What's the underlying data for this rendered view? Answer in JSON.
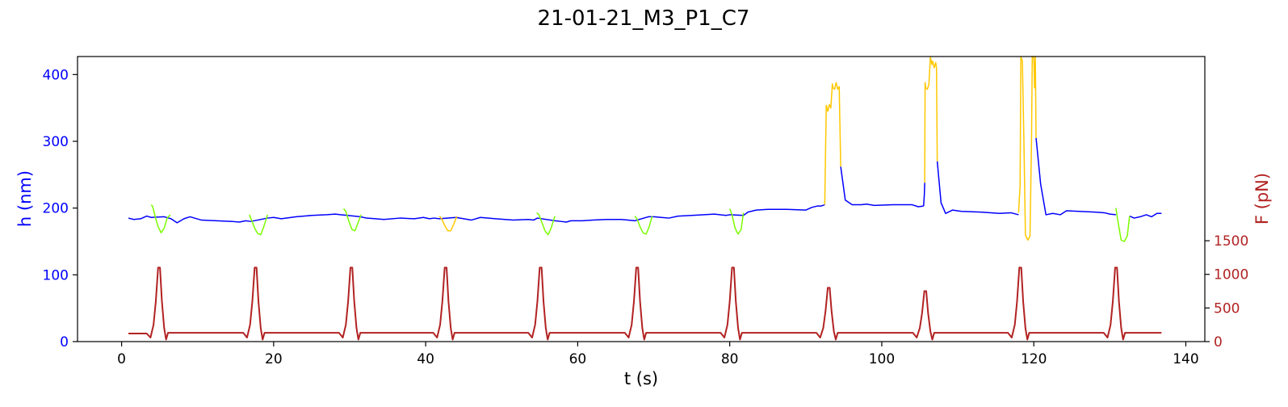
{
  "chart_data": {
    "type": "line",
    "title": "21-01-21_M3_P1_C7",
    "xlabel": "t (s)",
    "ylabel_left": "h (nm)",
    "ylabel_right": "F (pN)",
    "xlim": [
      -5.8,
      142.5
    ],
    "ylim_left": [
      0,
      427
    ],
    "ylim_right": [
      0,
      4240
    ],
    "xticks": [
      0,
      20,
      40,
      60,
      80,
      100,
      120,
      140
    ],
    "yticks_left": [
      0,
      100,
      200,
      300,
      400
    ],
    "yticks_right": [
      0,
      500,
      1000,
      1500
    ],
    "grid": false,
    "colors": {
      "height_baseline": "#0000ff",
      "height_green_segments": "#7cfc00",
      "height_yellow_segments": "#ffc800",
      "force": "#b22222",
      "left_axis": "#0000ff",
      "right_axis": "#b22222"
    },
    "series": [
      {
        "role": "height_baseline",
        "axis": "left",
        "x": [
          0.9,
          1.6,
          2.5,
          3.3,
          3.9,
          5.6,
          6.5,
          7.3,
          8.2,
          9.0,
          10.5,
          12.5,
          14.5,
          15.5,
          16.3,
          17.0,
          19.2,
          20.0,
          21.0,
          23.0,
          25.0,
          27.0,
          28.1,
          28.8,
          31.4,
          32.2,
          33.4,
          34.5,
          36.6,
          38.5,
          39.7,
          40.5,
          41.1,
          41.8,
          44.0,
          45.0,
          46.0,
          47.2,
          49.2,
          51.5,
          53.5,
          54.2,
          54.7,
          57.0,
          57.8,
          58.5,
          59.1,
          60.6,
          62.0,
          63.8,
          65.7,
          66.6,
          67.5,
          69.3,
          70.0,
          71.0,
          72.0,
          73.2,
          75.0,
          78.0,
          79.5,
          80.0,
          81.8,
          82.4,
          83.5,
          85.0,
          87.5,
          90.0,
          90.8,
          91.5,
          92.0,
          92.5
        ],
        "y": [
          185,
          183,
          184,
          188,
          186,
          187,
          184,
          178,
          184,
          187,
          182,
          181,
          180,
          179,
          181,
          180,
          185,
          186,
          184,
          187,
          189,
          190,
          191,
          190,
          187,
          185,
          184,
          183,
          185,
          184,
          186,
          184,
          185,
          184,
          186,
          184,
          182,
          186,
          184,
          182,
          183,
          182,
          185,
          181,
          180,
          179,
          181,
          181,
          182,
          183,
          183,
          182,
          181,
          187,
          187,
          186,
          185,
          188,
          189,
          191,
          189,
          190,
          189,
          194,
          197,
          198,
          198,
          197,
          201,
          203,
          203,
          205
        ]
      },
      {
        "role": "height_baseline",
        "axis": "left",
        "x": [
          94.6,
          95.2,
          96.1,
          97.3,
          98.0,
          99.0,
          101.5,
          104.0,
          104.8,
          105.5
        ],
        "y": [
          262,
          212,
          205,
          205,
          206,
          204,
          205,
          205,
          202,
          203
        ]
      },
      {
        "role": "height_baseline",
        "axis": "left",
        "x": [
          105.5,
          105.6,
          105.65
        ],
        "y": [
          203,
          220,
          238
        ]
      },
      {
        "role": "height_baseline",
        "axis": "left",
        "x": [
          107.3,
          107.8,
          108.4,
          109.3,
          110.5,
          113.0,
          115.5,
          117.0,
          118.0
        ],
        "y": [
          270,
          208,
          192,
          197,
          195,
          194,
          192,
          193,
          190
        ]
      },
      {
        "role": "height_baseline",
        "axis": "left",
        "x": [
          120.3,
          120.9,
          121.6,
          122.5,
          123.5,
          124.3,
          126.0,
          128.0,
          129.3,
          130.0,
          130.8
        ],
        "y": [
          305,
          236,
          190,
          192,
          190,
          196,
          195,
          194,
          193,
          191,
          190
        ]
      },
      {
        "role": "height_baseline",
        "axis": "left",
        "x": [
          132.6,
          133.2,
          134.0,
          134.8,
          135.5,
          136.2,
          136.8
        ],
        "y": [
          188,
          185,
          187,
          190,
          187,
          192,
          192
        ]
      },
      {
        "role": "height_green_segments",
        "axis": "left",
        "x": [
          3.9,
          4.1,
          4.4,
          4.8,
          5.2,
          5.6,
          6.0,
          6.4
        ],
        "y": [
          205,
          202,
          188,
          172,
          163,
          170,
          185,
          190
        ]
      },
      {
        "role": "height_green_segments",
        "axis": "left",
        "x": [
          16.8,
          17.1,
          17.5,
          17.9,
          18.3,
          18.7,
          19.2
        ],
        "y": [
          190,
          182,
          170,
          162,
          160,
          172,
          190
        ]
      },
      {
        "role": "height_green_segments",
        "axis": "left",
        "x": [
          29.2,
          29.5,
          29.9,
          30.3,
          30.7,
          31.1,
          31.5
        ],
        "y": [
          199,
          195,
          180,
          168,
          166,
          178,
          190
        ]
      },
      {
        "role": "height_yellow_segments",
        "axis": "left",
        "x": [
          41.8,
          42.1,
          42.5,
          42.9,
          43.3,
          43.7,
          44.1
        ],
        "y": [
          188,
          184,
          174,
          166,
          166,
          176,
          188
        ]
      },
      {
        "role": "height_green_segments",
        "axis": "left",
        "x": [
          54.6,
          54.9,
          55.3,
          55.7,
          56.1,
          56.5,
          57.0
        ],
        "y": [
          193,
          190,
          178,
          166,
          160,
          170,
          188
        ]
      },
      {
        "role": "height_green_segments",
        "axis": "left",
        "x": [
          67.5,
          67.8,
          68.2,
          68.6,
          69.0,
          69.4,
          69.8
        ],
        "y": [
          188,
          184,
          172,
          163,
          161,
          172,
          188
        ]
      },
      {
        "role": "height_green_segments",
        "axis": "left",
        "x": [
          80.0,
          80.3,
          80.7,
          81.1,
          81.5,
          81.8
        ],
        "y": [
          199,
          190,
          170,
          161,
          168,
          193
        ]
      },
      {
        "role": "height_yellow_segments",
        "axis": "left",
        "x": [
          92.5,
          92.6,
          92.7,
          92.9,
          93.1,
          93.3,
          93.5,
          93.6,
          93.8,
          94.0,
          94.2,
          94.4,
          94.6
        ],
        "y": [
          205,
          280,
          354,
          345,
          355,
          350,
          386,
          380,
          378,
          388,
          378,
          382,
          262
        ]
      },
      {
        "role": "height_yellow_segments",
        "axis": "left",
        "x": [
          105.65,
          105.7,
          105.8,
          106.0,
          106.2,
          106.4,
          106.6,
          106.7,
          106.9,
          107.1,
          107.2,
          107.3
        ],
        "y": [
          238,
          388,
          380,
          378,
          385,
          426,
          415,
          420,
          410,
          418,
          410,
          270
        ]
      },
      {
        "role": "height_yellow_segments",
        "axis": "left",
        "x": [
          118.0,
          118.2,
          118.3,
          118.5,
          118.7,
          118.9,
          119.2,
          119.5,
          119.7,
          119.8,
          120.0,
          120.1,
          120.2,
          120.3
        ],
        "y": [
          193,
          235,
          427,
          420,
          300,
          160,
          152,
          158,
          300,
          427,
          427,
          380,
          427,
          305
        ]
      },
      {
        "role": "height_green_segments",
        "axis": "left",
        "x": [
          130.8,
          131.1,
          131.5,
          131.9,
          132.3,
          132.6
        ],
        "y": [
          200,
          178,
          152,
          150,
          158,
          188
        ]
      },
      {
        "role": "force",
        "axis": "right",
        "x": [
          0.9,
          3.3,
          3.8,
          4.2,
          4.5,
          4.8,
          5.05,
          5.3,
          5.6,
          5.85,
          6.1,
          6.5,
          16.0,
          16.5,
          16.9,
          17.2,
          17.5,
          17.75,
          18.0,
          18.3,
          18.55,
          18.8,
          19.2,
          28.6,
          29.1,
          29.5,
          29.8,
          30.1,
          30.35,
          30.6,
          30.9,
          31.15,
          31.4,
          31.8,
          41.0,
          41.5,
          41.9,
          42.2,
          42.5,
          42.75,
          43.0,
          43.3,
          43.55,
          43.8,
          44.2,
          53.5,
          54.0,
          54.4,
          54.7,
          55.0,
          55.25,
          55.5,
          55.8,
          56.05,
          56.3,
          56.7,
          66.2,
          66.7,
          67.1,
          67.4,
          67.7,
          67.95,
          68.2,
          68.5,
          68.75,
          69.0,
          69.4,
          78.8,
          79.3,
          79.7,
          80.0,
          80.3,
          80.55,
          80.8,
          81.1,
          81.35,
          81.6,
          82.0,
          91.4,
          91.9,
          92.3,
          92.6,
          92.9,
          93.15,
          93.4,
          93.7,
          93.95,
          94.2,
          94.6,
          104.1,
          104.6,
          105.0,
          105.3,
          105.6,
          105.85,
          106.1,
          106.4,
          106.65,
          106.9,
          107.3,
          116.6,
          117.1,
          117.5,
          117.8,
          118.1,
          118.35,
          118.6,
          118.9,
          119.15,
          119.4,
          119.8,
          129.2,
          129.7,
          130.1,
          130.4,
          130.7,
          130.95,
          131.2,
          131.5,
          131.75,
          132.0,
          132.4,
          136.8
        ],
        "y": [
          120,
          120,
          60,
          250,
          600,
          1100,
          1100,
          600,
          200,
          30,
          130,
          130,
          130,
          60,
          250,
          600,
          1100,
          1100,
          600,
          200,
          30,
          130,
          130,
          130,
          60,
          250,
          600,
          1100,
          1100,
          600,
          200,
          30,
          130,
          130,
          130,
          60,
          250,
          600,
          1100,
          1100,
          600,
          200,
          30,
          130,
          130,
          130,
          60,
          250,
          600,
          1100,
          1100,
          600,
          200,
          30,
          130,
          130,
          130,
          60,
          250,
          600,
          1100,
          1100,
          600,
          200,
          30,
          130,
          130,
          130,
          60,
          250,
          600,
          1100,
          1100,
          600,
          200,
          30,
          130,
          130,
          130,
          60,
          200,
          450,
          800,
          800,
          450,
          150,
          30,
          130,
          130,
          130,
          60,
          200,
          420,
          750,
          750,
          420,
          150,
          30,
          130,
          130,
          130,
          60,
          250,
          600,
          1100,
          1100,
          600,
          200,
          30,
          130,
          130,
          130,
          60,
          250,
          600,
          1100,
          1100,
          600,
          200,
          30,
          130,
          130,
          130
        ]
      }
    ]
  }
}
